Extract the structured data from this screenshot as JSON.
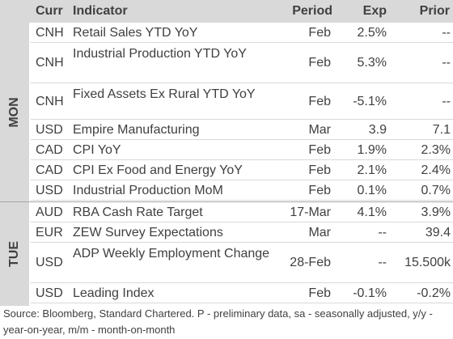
{
  "header": {
    "curr": "Curr",
    "indicator": "Indicator",
    "period": "Period",
    "exp": "Exp",
    "prior": "Prior"
  },
  "groups": [
    {
      "day": "MON",
      "rows": [
        {
          "curr": "CNH",
          "indicator": "Retail Sales YTD YoY",
          "period": "Feb",
          "exp": "2.5%",
          "prior": "--"
        },
        {
          "curr": "CNH",
          "indicator": "Industrial Production YTD YoY",
          "period": "Feb",
          "exp": "5.3%",
          "prior": "--"
        },
        {
          "curr": "CNH",
          "indicator": "Fixed Assets Ex Rural YTD YoY",
          "period": "Feb",
          "exp": "-5.1%",
          "prior": "--"
        },
        {
          "curr": "USD",
          "indicator": "Empire Manufacturing",
          "period": "Mar",
          "exp": "3.9",
          "prior": "7.1"
        },
        {
          "curr": "CAD",
          "indicator": "CPI YoY",
          "period": "Feb",
          "exp": "1.9%",
          "prior": "2.3%"
        },
        {
          "curr": "CAD",
          "indicator": "CPI Ex Food and Energy YoY",
          "period": "Feb",
          "exp": "2.1%",
          "prior": "2.4%"
        },
        {
          "curr": "USD",
          "indicator": "Industrial Production MoM",
          "period": "Feb",
          "exp": "0.1%",
          "prior": "0.7%"
        }
      ]
    },
    {
      "day": "TUE",
      "rows": [
        {
          "curr": "AUD",
          "indicator": "RBA Cash Rate Target",
          "period": "17-Mar",
          "exp": "4.1%",
          "prior": "3.9%"
        },
        {
          "curr": "EUR",
          "indicator": "ZEW Survey Expectations",
          "period": "Mar",
          "exp": "--",
          "prior": "39.4"
        },
        {
          "curr": "USD",
          "indicator": "ADP Weekly Employment Change",
          "period": "28-Feb",
          "exp": "--",
          "prior": "15.500k"
        },
        {
          "curr": "USD",
          "indicator": "Leading Index",
          "period": "Feb",
          "exp": "-0.1%",
          "prior": "-0.2%"
        }
      ]
    }
  ],
  "source": "Source: Bloomberg, Standard Chartered. P - preliminary data, sa - seasonally adjusted, y/y - year-on-year, m/m - month-on-month"
}
